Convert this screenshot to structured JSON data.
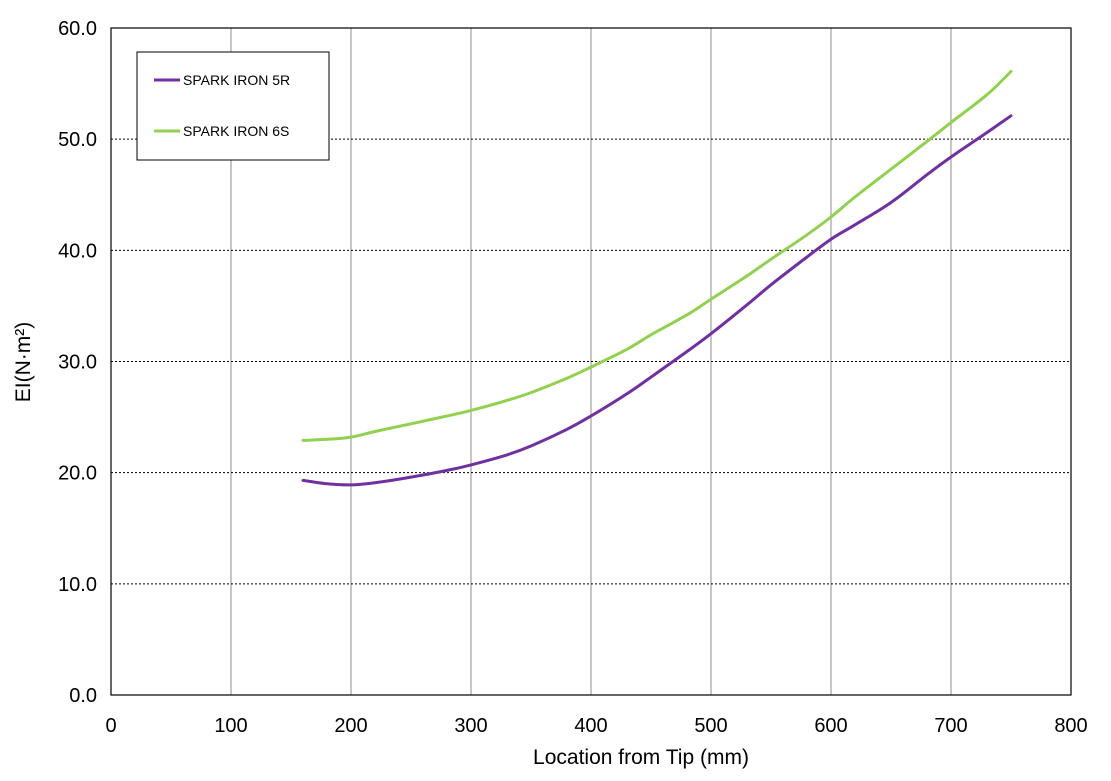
{
  "chart_data": {
    "type": "line",
    "title": "",
    "xlabel": "Location from Tip (mm)",
    "ylabel": "EI(N·m²)",
    "xlim": [
      0,
      800
    ],
    "ylim": [
      0,
      60
    ],
    "xticks": [
      0,
      100,
      200,
      300,
      400,
      500,
      600,
      700,
      800
    ],
    "yticks": [
      0,
      10,
      20,
      30,
      40,
      50,
      60
    ],
    "xtick_labels": [
      "0",
      "100",
      "200",
      "300",
      "400",
      "500",
      "600",
      "700",
      "800"
    ],
    "ytick_labels": [
      "0.0",
      "10.0",
      "20.0",
      "30.0",
      "40.0",
      "50.0",
      "60.0"
    ],
    "grid": true,
    "legend_position": "top-left",
    "series": [
      {
        "name": "SPARK IRON 5R",
        "color": "#7030A0",
        "x": [
          160,
          180,
          200,
          220,
          250,
          280,
          300,
          330,
          350,
          380,
          400,
          430,
          450,
          480,
          500,
          530,
          550,
          580,
          600,
          620,
          650,
          680,
          700,
          730,
          750
        ],
        "y": [
          19.3,
          19.0,
          18.9,
          19.1,
          19.6,
          20.2,
          20.7,
          21.6,
          22.4,
          23.9,
          25.1,
          27.1,
          28.6,
          30.9,
          32.5,
          35.1,
          36.9,
          39.4,
          41.0,
          42.3,
          44.3,
          46.8,
          48.4,
          50.6,
          52.1
        ]
      },
      {
        "name": "SPARK IRON 6S",
        "color": "#92D050",
        "x": [
          160,
          180,
          200,
          220,
          250,
          280,
          300,
          330,
          350,
          380,
          400,
          430,
          450,
          480,
          500,
          530,
          550,
          580,
          600,
          620,
          650,
          680,
          700,
          730,
          750
        ],
        "y": [
          22.9,
          23.0,
          23.2,
          23.7,
          24.4,
          25.1,
          25.6,
          26.5,
          27.2,
          28.5,
          29.5,
          31.1,
          32.4,
          34.2,
          35.6,
          37.7,
          39.2,
          41.4,
          43.0,
          44.8,
          47.3,
          49.8,
          51.5,
          54.0,
          56.1
        ]
      }
    ]
  }
}
